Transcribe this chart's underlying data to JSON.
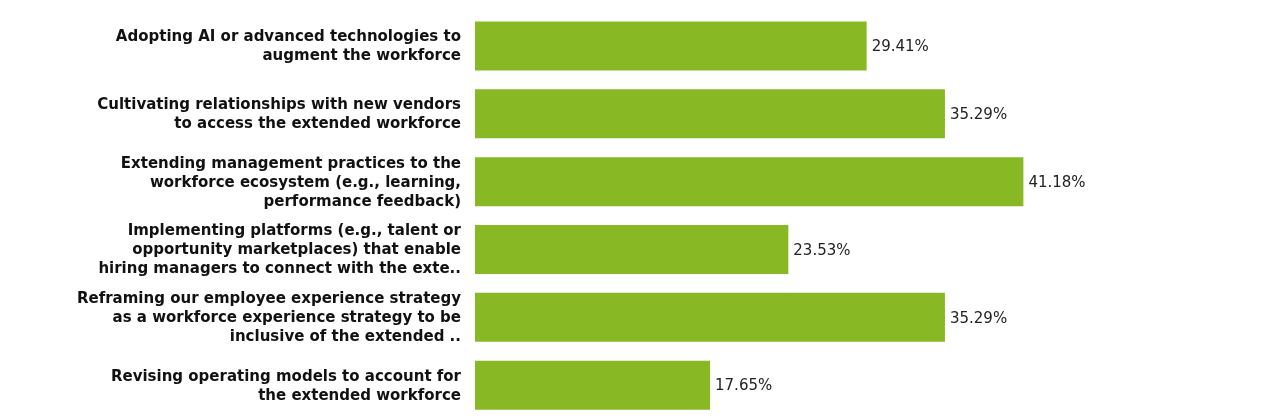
{
  "chart_data": {
    "type": "bar",
    "orientation": "horizontal",
    "categories": [
      "Adopting AI or advanced technologies to augment the workforce",
      "Cultivating relationships with new vendors to access the extended workforce",
      "Extending management practices to the workforce ecosystem (e.g., learning, performance feedback)",
      "Implementing platforms (e.g., talent or opportunity marketplaces) that enable hiring managers to connect with the exte..",
      "Reframing our employee experience strategy as a workforce experience strategy to be inclusive of the extended ..",
      "Revising operating models to account for the extended workforce"
    ],
    "values": [
      29.41,
      35.29,
      41.18,
      23.53,
      35.29,
      17.65
    ],
    "value_labels": [
      "29.41%",
      "35.29%",
      "41.18%",
      "23.53%",
      "35.29%",
      "17.65%"
    ],
    "color": "#88b925",
    "tick_labels": "y"
  }
}
